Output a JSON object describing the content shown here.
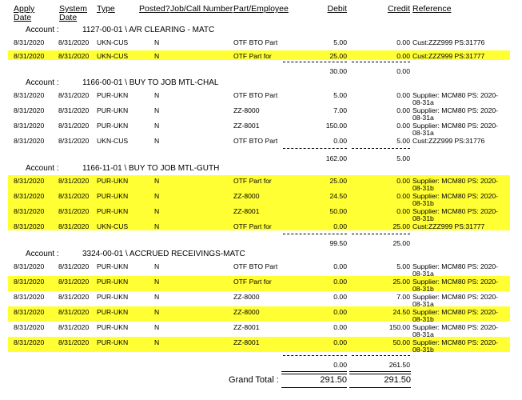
{
  "columns": {
    "apply_date": "Apply\nDate",
    "apply_1": "Apply",
    "apply_2": "Date",
    "system_1": "System",
    "system_2": "Date",
    "type": "Type",
    "posted": "Posted?",
    "job_call": "Job/Call Number",
    "part_employee": "Part/Employee",
    "debit": "Debit",
    "credit": "Credit",
    "reference": "Reference"
  },
  "account_label": "Account :",
  "accounts": [
    {
      "name": "1127-00-01 \\ A/R CLEARING - MATC",
      "rows": [
        {
          "apply": "8/31/2020",
          "system": "8/31/2020",
          "type": "UKN-CUS",
          "posted": "N",
          "part": "OTF BTO Part",
          "debit": "5.00",
          "credit": "0.00",
          "ref1": "Cust:ZZZ999 PS:31776",
          "ref2": ""
        },
        {
          "apply": "8/31/2020",
          "system": "8/31/2020",
          "type": "UKN-CUS",
          "posted": "N",
          "part": "OTF Part for",
          "debit": "25.00",
          "credit": "0.00",
          "ref1": "Cust:ZZZ999 PS:31777",
          "ref2": ""
        }
      ],
      "debit_total": "30.00",
      "credit_total": "0.00"
    },
    {
      "name": "1166-00-01 \\ BUY TO JOB MTL-CHAL",
      "rows": [
        {
          "apply": "8/31/2020",
          "system": "8/31/2020",
          "type": "PUR-UKN",
          "posted": "N",
          "part": "OTF BTO Part",
          "debit": "5.00",
          "credit": "0.00",
          "ref1": "Supplier: MCM80 PS: 2020-",
          "ref2": "08-31a"
        },
        {
          "apply": "8/31/2020",
          "system": "8/31/2020",
          "type": "PUR-UKN",
          "posted": "N",
          "part": "ZZ-8000",
          "debit": "7.00",
          "credit": "0.00",
          "ref1": "Supplier: MCM80 PS: 2020-",
          "ref2": "08-31a"
        },
        {
          "apply": "8/31/2020",
          "system": "8/31/2020",
          "type": "PUR-UKN",
          "posted": "N",
          "part": "ZZ-8001",
          "debit": "150.00",
          "credit": "0.00",
          "ref1": "Supplier: MCM80 PS: 2020-",
          "ref2": "08-31a"
        },
        {
          "apply": "8/31/2020",
          "system": "8/31/2020",
          "type": "UKN-CUS",
          "posted": "N",
          "part": "OTF BTO Part",
          "debit": "0.00",
          "credit": "5.00",
          "ref1": "Cust:ZZZ999 PS:31776",
          "ref2": ""
        }
      ],
      "debit_total": "162.00",
      "credit_total": "5.00"
    },
    {
      "name": "1166-11-01 \\ BUY TO JOB MTL-GUTH",
      "rows": [
        {
          "apply": "8/31/2020",
          "system": "8/31/2020",
          "type": "PUR-UKN",
          "posted": "N",
          "part": "OTF Part for",
          "debit": "25.00",
          "credit": "0.00",
          "ref1": "Supplier: MCM80 PS: 2020-",
          "ref2": "08-31b"
        },
        {
          "apply": "8/31/2020",
          "system": "8/31/2020",
          "type": "PUR-UKN",
          "posted": "N",
          "part": "ZZ-8000",
          "debit": "24.50",
          "credit": "0.00",
          "ref1": "Supplier: MCM80 PS: 2020-",
          "ref2": "08-31b"
        },
        {
          "apply": "8/31/2020",
          "system": "8/31/2020",
          "type": "PUR-UKN",
          "posted": "N",
          "part": "ZZ-8001",
          "debit": "50.00",
          "credit": "0.00",
          "ref1": "Supplier: MCM80 PS: 2020-",
          "ref2": "08-31b"
        },
        {
          "apply": "8/31/2020",
          "system": "8/31/2020",
          "type": "UKN-CUS",
          "posted": "N",
          "part": "OTF Part for",
          "debit": "0.00",
          "credit": "25.00",
          "ref1": "Cust:ZZZ999 PS:31777",
          "ref2": ""
        }
      ],
      "debit_total": "99.50",
      "credit_total": "25.00"
    },
    {
      "name": "3324-00-01 \\ ACCRUED RECEIVINGS-MATC",
      "rows": [
        {
          "apply": "8/31/2020",
          "system": "8/31/2020",
          "type": "PUR-UKN",
          "posted": "N",
          "part": "OTF BTO Part",
          "debit": "0.00",
          "credit": "5.00",
          "ref1": "Supplier: MCM80 PS: 2020-",
          "ref2": "08-31a"
        },
        {
          "apply": "8/31/2020",
          "system": "8/31/2020",
          "type": "PUR-UKN",
          "posted": "N",
          "part": "OTF Part for",
          "debit": "0.00",
          "credit": "25.00",
          "ref1": "Supplier: MCM80 PS: 2020-",
          "ref2": "08-31b"
        },
        {
          "apply": "8/31/2020",
          "system": "8/31/2020",
          "type": "PUR-UKN",
          "posted": "N",
          "part": "ZZ-8000",
          "debit": "0.00",
          "credit": "7.00",
          "ref1": "Supplier: MCM80 PS: 2020-",
          "ref2": "08-31a"
        },
        {
          "apply": "8/31/2020",
          "system": "8/31/2020",
          "type": "PUR-UKN",
          "posted": "N",
          "part": "ZZ-8000",
          "debit": "0.00",
          "credit": "24.50",
          "ref1": "Supplier: MCM80 PS: 2020-",
          "ref2": "08-31b"
        },
        {
          "apply": "8/31/2020",
          "system": "8/31/2020",
          "type": "PUR-UKN",
          "posted": "N",
          "part": "ZZ-8001",
          "debit": "0.00",
          "credit": "150.00",
          "ref1": "Supplier: MCM80 PS: 2020-",
          "ref2": "08-31a"
        },
        {
          "apply": "8/31/2020",
          "system": "8/31/2020",
          "type": "PUR-UKN",
          "posted": "N",
          "part": "ZZ-8001",
          "debit": "0.00",
          "credit": "50.00",
          "ref1": "Supplier: MCM80 PS: 2020-",
          "ref2": "08-31b"
        }
      ],
      "debit_total": "0.00",
      "credit_total": "261.50"
    }
  ],
  "grand_total": {
    "label": "Grand Total :",
    "debit": "291.50",
    "credit": "291.50"
  },
  "highlight_color": "#ffff33"
}
